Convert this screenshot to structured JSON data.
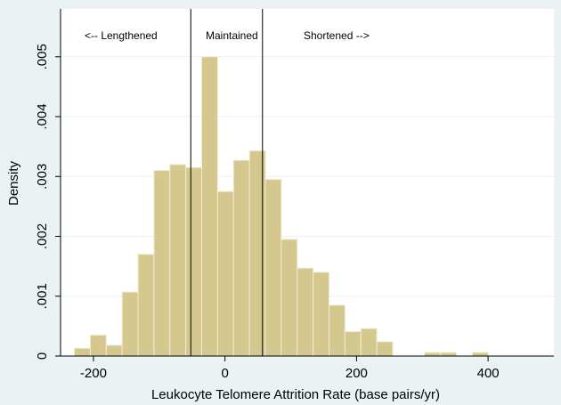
{
  "chart_data": {
    "type": "bar",
    "title": "",
    "xlabel": "Leukocyte Telomere Attrition Rate (base pairs/yr)",
    "ylabel": "Density",
    "xlim": [
      -250,
      500
    ],
    "ylim": [
      0,
      0.0058
    ],
    "x_ticks": [
      -200,
      0,
      200,
      400
    ],
    "x_tick_labels": [
      "-200",
      "0",
      "200",
      "400"
    ],
    "y_ticks": [
      0,
      0.001,
      0.002,
      0.003,
      0.004,
      0.005
    ],
    "y_tick_labels": [
      "0",
      ".001",
      ".002",
      ".003",
      ".004",
      ".005"
    ],
    "bin_width": 24.2,
    "bins": [
      {
        "start": -229.0,
        "density": 0.00013
      },
      {
        "start": -204.8,
        "density": 0.00035
      },
      {
        "start": -180.6,
        "density": 0.00018
      },
      {
        "start": -156.4,
        "density": 0.00107
      },
      {
        "start": -132.2,
        "density": 0.0017
      },
      {
        "start": -108.0,
        "density": 0.0031
      },
      {
        "start": -83.8,
        "density": 0.0032
      },
      {
        "start": -59.6,
        "density": 0.00315
      },
      {
        "start": -35.4,
        "density": 0.005
      },
      {
        "start": -11.2,
        "density": 0.00275
      },
      {
        "start": 13.0,
        "density": 0.00327
      },
      {
        "start": 37.2,
        "density": 0.00343
      },
      {
        "start": 61.4,
        "density": 0.00295
      },
      {
        "start": 85.6,
        "density": 0.00195
      },
      {
        "start": 109.8,
        "density": 0.00147
      },
      {
        "start": 134.0,
        "density": 0.0014
      },
      {
        "start": 158.2,
        "density": 0.00085
      },
      {
        "start": 182.4,
        "density": 0.00041
      },
      {
        "start": 206.6,
        "density": 0.00046
      },
      {
        "start": 230.8,
        "density": 0.00024
      },
      {
        "start": 303.4,
        "density": 6e-05
      },
      {
        "start": 327.6,
        "density": 6e-05
      },
      {
        "start": 376.0,
        "density": 6e-05
      }
    ],
    "reference_lines_x": [
      -52,
      57
    ],
    "region_labels": [
      "<-- Lengthened",
      "Maintained",
      "Shortened -->"
    ],
    "bar_color": "#d4c88f",
    "bar_edge_color": "#f2ecd2",
    "grid": true,
    "grid_color": "#eaf2f3"
  }
}
